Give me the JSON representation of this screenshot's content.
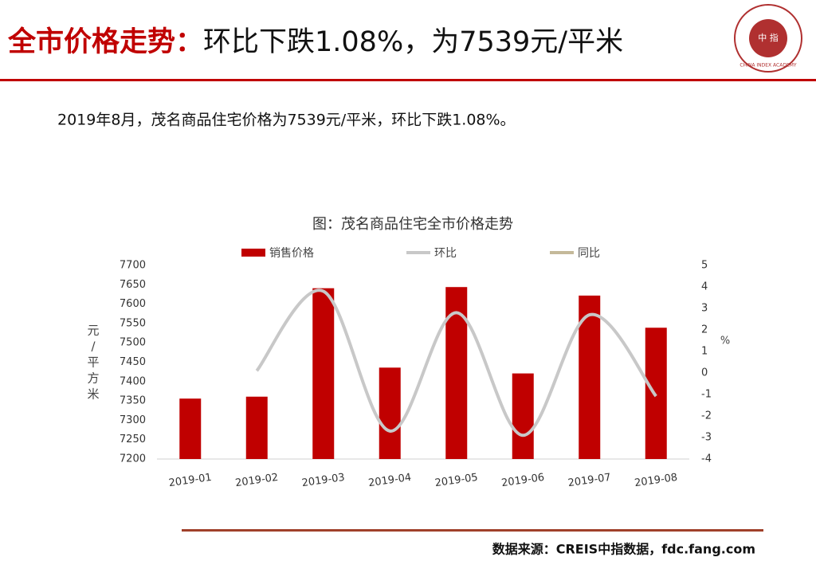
{
  "header": {
    "title_red": "全市价格走势：",
    "title_black": "环比下跌1.08%，为7539元/平米",
    "logo_text": "CHINA INDEX ACADEMY",
    "logo_mark": "中 指"
  },
  "summary": "2019年8月，茂名商品住宅价格为7539元/平米，环比下跌1.08%。",
  "chart_data": {
    "type": "bar",
    "title": "图：茂名商品住宅全市价格走势",
    "categories": [
      "2019-01",
      "2019-02",
      "2019-03",
      "2019-04",
      "2019-05",
      "2019-06",
      "2019-07",
      "2019-08"
    ],
    "series": [
      {
        "name": "销售价格",
        "type": "bar",
        "color": "#c00000",
        "axis": "y",
        "values": [
          7356,
          7361,
          7641,
          7436,
          7644,
          7421,
          7622,
          7539
        ]
      },
      {
        "name": "环比",
        "type": "line",
        "color": "#c8c8c8",
        "axis": "y2",
        "values": [
          null,
          0.1,
          3.8,
          -2.7,
          2.8,
          -2.9,
          2.7,
          -1.08
        ]
      },
      {
        "name": "同比",
        "type": "line",
        "color": "#c4b99a",
        "axis": "y2",
        "values": [
          null,
          null,
          null,
          null,
          null,
          null,
          null,
          null
        ]
      }
    ],
    "ylabel": "元/平方米",
    "y2label": "%",
    "ylim": [
      7200,
      7700
    ],
    "yticks": [
      7200,
      7250,
      7300,
      7350,
      7400,
      7450,
      7500,
      7550,
      7600,
      7650,
      7700
    ],
    "y2lim": [
      -4,
      5
    ],
    "y2ticks": [
      -4,
      -3,
      -2,
      -1,
      0,
      1,
      2,
      3,
      4,
      5
    ],
    "legend": "top",
    "grid": false
  },
  "source": "数据来源：CREIS中指数据，fdc.fang.com"
}
